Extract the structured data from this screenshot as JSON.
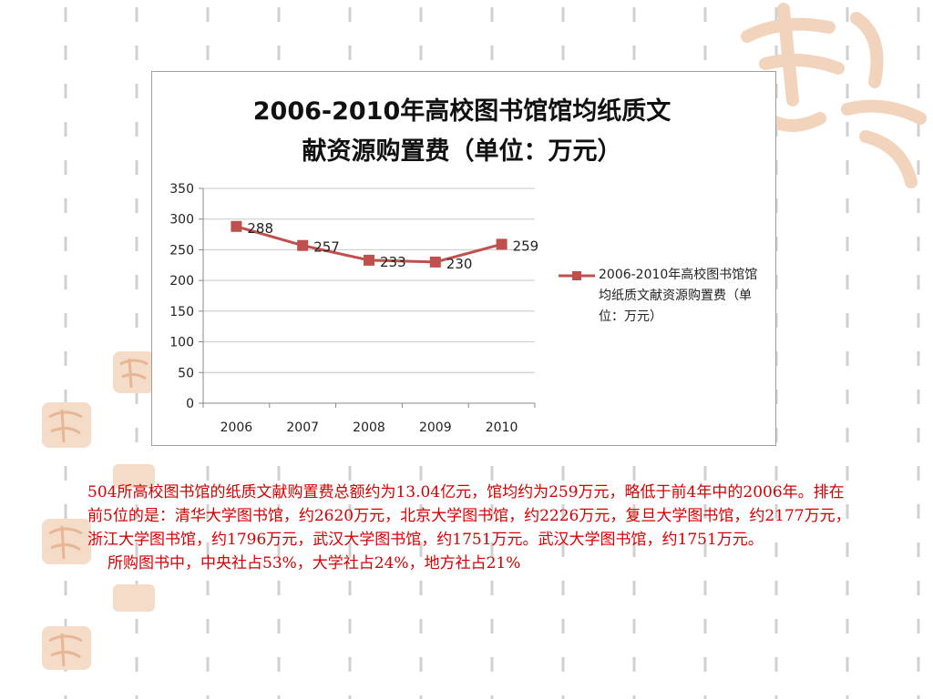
{
  "slide": {
    "paragraph": "504所高校图书馆的纸质文献购置费总额约为13.04亿元，馆均约为259万元，略低于前4年中的2006年。排在前5位的是：清华大学图书馆，约2620万元，北京大学图书馆，约2226万元，复旦大学图书馆，约2177万元，浙江大学图书馆，约1796万元，武汉大学图书馆，约1751万元。武汉大学图书馆，约1751万元。",
    "note": "所购图书中，中央社占53%，大学社占24%，地方社占21%",
    "text_color": "#d40000"
  },
  "chart_data": {
    "type": "line",
    "title_line1": "2006-2010年高校图书馆馆均纸质文",
    "title_line2": "献资源购置费（单位：万元）",
    "categories": [
      "2006",
      "2007",
      "2008",
      "2009",
      "2010"
    ],
    "series": [
      {
        "name": "2006-2010年高校图书馆馆均纸质文献资源购置费（单位：万元）",
        "values": [
          288,
          257,
          233,
          230,
          259
        ],
        "color": "#c0504d"
      }
    ],
    "data_labels": [
      "288",
      "257",
      "233",
      "230",
      "259"
    ],
    "ylim": [
      0,
      350
    ],
    "yticks": [
      0,
      50,
      100,
      150,
      200,
      250,
      300,
      350
    ],
    "ytick_labels": [
      "0",
      "50",
      "100",
      "150",
      "200",
      "250",
      "300",
      "350"
    ],
    "grid": true,
    "legend_position": "right"
  }
}
